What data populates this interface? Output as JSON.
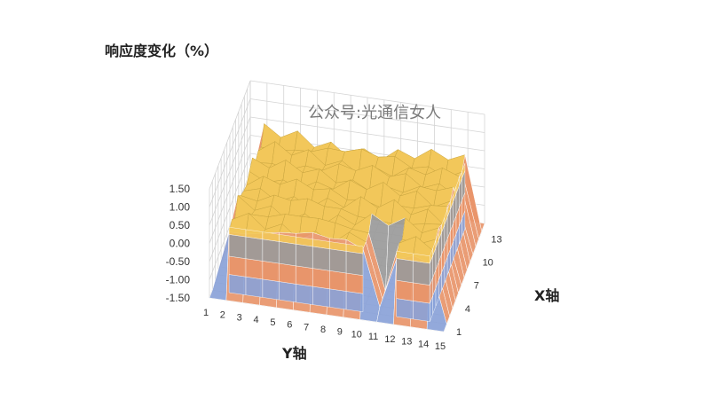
{
  "watermark": "公众号:光通信女人",
  "chart_data": {
    "type": "surface",
    "zlabel": "响应度变化（%）",
    "xlabel": "X轴",
    "ylabel": "Y轴",
    "zlim": [
      -1.5,
      1.5
    ],
    "z_ticks": [
      "1.50",
      "1.00",
      "0.50",
      "0.00",
      "-0.50",
      "-1.00",
      "-1.50"
    ],
    "y_ticks": [
      "1",
      "2",
      "3",
      "4",
      "5",
      "6",
      "7",
      "8",
      "9",
      "10",
      "11",
      "12",
      "13",
      "14",
      "15"
    ],
    "x_ticks": [
      "1",
      "4",
      "7",
      "10",
      "13"
    ],
    "grid": true,
    "band_colors": [
      "#8aa2d8",
      "#e8956a",
      "#9a9a9a",
      "#f2c75a"
    ],
    "surface": {
      "description_rows_are_x_1_to_15_columns_are_y_1_to_15": true,
      "edge_value": -1.5,
      "plateau_value": 0.3,
      "peak_value": 0.6,
      "dip_at_y_11": true
    }
  }
}
